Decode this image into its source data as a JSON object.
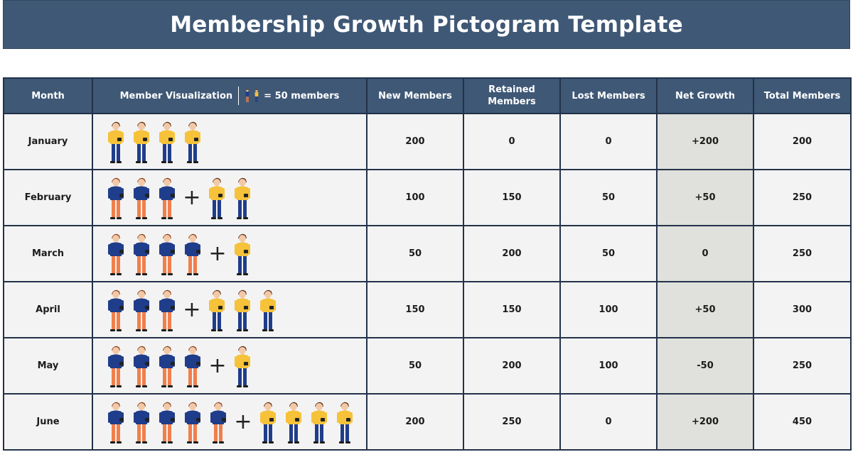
{
  "title": "Membership Growth Pictogram Template",
  "legend": {
    "text": "= 50 members",
    "unit_value": 50
  },
  "columns": {
    "month": "Month",
    "visualization": "Member Visualization",
    "new": "New Members",
    "retained": "Retained Members",
    "lost": "Lost Members",
    "net": "Net Growth",
    "total": "Total Members"
  },
  "colors": {
    "header_bg": "#3f5876",
    "cell_bg": "#f3f3f3",
    "net_bg": "#e0e0dc",
    "retained_shirt": "#1f3d8a",
    "retained_pants": "#f07f4c",
    "new_shirt": "#f6c23a",
    "new_pants": "#1f3d8a"
  },
  "chart_data": {
    "type": "table",
    "unit": 50,
    "rows": [
      {
        "month": "January",
        "new": "200",
        "retained": "0",
        "lost": "0",
        "net": "+200",
        "total": "200",
        "retained_icons": 0,
        "new_icons": 4
      },
      {
        "month": "February",
        "new": "100",
        "retained": "150",
        "lost": "50",
        "net": "+50",
        "total": "250",
        "retained_icons": 3,
        "new_icons": 2
      },
      {
        "month": "March",
        "new": "50",
        "retained": "200",
        "lost": "50",
        "net": "0",
        "total": "250",
        "retained_icons": 4,
        "new_icons": 1
      },
      {
        "month": "April",
        "new": "150",
        "retained": "150",
        "lost": "100",
        "net": "+50",
        "total": "300",
        "retained_icons": 3,
        "new_icons": 3
      },
      {
        "month": "May",
        "new": "50",
        "retained": "200",
        "lost": "100",
        "net": "-50",
        "total": "250",
        "retained_icons": 4,
        "new_icons": 1
      },
      {
        "month": "June",
        "new": "200",
        "retained": "250",
        "lost": "0",
        "net": "+200",
        "total": "450",
        "retained_icons": 5,
        "new_icons": 4
      }
    ]
  }
}
